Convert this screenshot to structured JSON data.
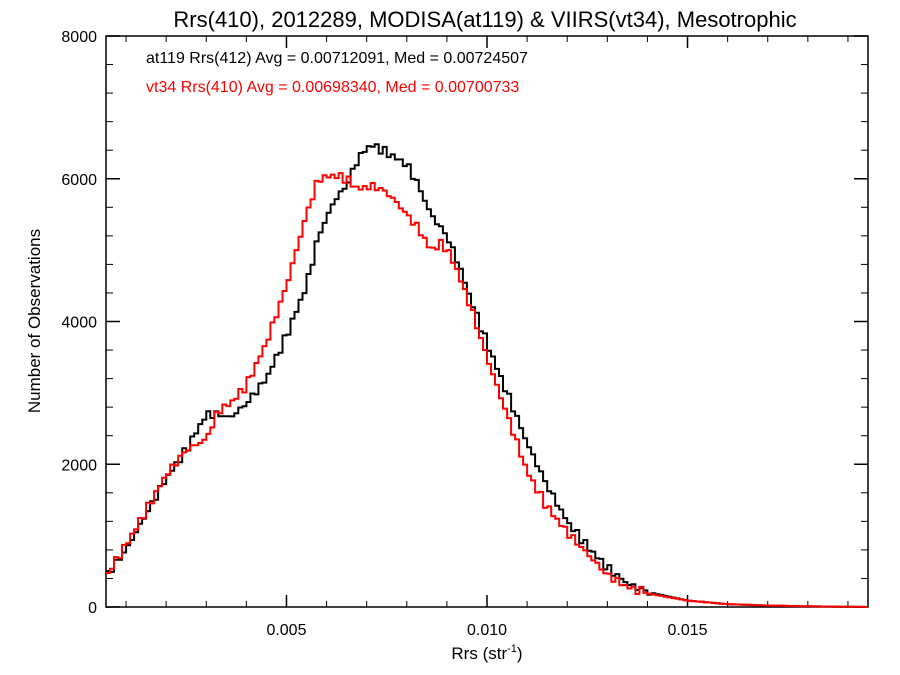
{
  "chart_data": {
    "type": "line",
    "title": "Rrs(410), 2012289, MODISA(at119) & VIIRS(vt34), Mesotrophic",
    "xlabel": "Rrs (str",
    "xlabel_sup": "-1",
    "xlabel_end": ")",
    "ylabel": "Number of Observations",
    "xlim": [
      0.0005,
      0.0195
    ],
    "ylim": [
      0,
      8000
    ],
    "x_ticks": [
      0.005,
      0.01,
      0.015
    ],
    "x_tick_labels": [
      "0.005",
      "0.010",
      "0.015"
    ],
    "y_ticks": [
      0,
      2000,
      4000,
      6000,
      8000
    ],
    "y_tick_labels": [
      "0",
      "2000",
      "4000",
      "6000",
      "8000"
    ],
    "grid": false,
    "legend": "top-left",
    "colors": {
      "black": "#000000",
      "red": "#ff0000"
    },
    "annotations": [
      {
        "text": "at119 Rrs(412) Avg = 0.00712091, Med = 0.00724507",
        "color": "#000000"
      },
      {
        "text": "vt34 Rrs(410) Avg = 0.00698340, Med = 0.00700733",
        "color": "#ff0000"
      }
    ],
    "series": [
      {
        "color": "#000000",
        "x": [
          0.0005,
          0.001,
          0.0015,
          0.002,
          0.0025,
          0.003,
          0.0033,
          0.0036,
          0.004,
          0.0045,
          0.005,
          0.0055,
          0.0058,
          0.0062,
          0.0065,
          0.0068,
          0.0071,
          0.0074,
          0.0077,
          0.008,
          0.0083,
          0.0086,
          0.009,
          0.0093,
          0.0096,
          0.01,
          0.0105,
          0.011,
          0.0115,
          0.012,
          0.0125,
          0.013,
          0.0135,
          0.014,
          0.015,
          0.016,
          0.017,
          0.018,
          0.0195
        ],
        "y": [
          430,
          800,
          1300,
          1800,
          2200,
          2700,
          2700,
          2650,
          2850,
          3200,
          3800,
          4500,
          5200,
          5700,
          5900,
          6300,
          6480,
          6400,
          6300,
          6200,
          5900,
          5500,
          5200,
          4800,
          4300,
          3700,
          3000,
          2300,
          1700,
          1200,
          850,
          550,
          330,
          210,
          90,
          40,
          20,
          10,
          0
        ]
      },
      {
        "color": "#ff0000",
        "x": [
          0.0005,
          0.001,
          0.0015,
          0.002,
          0.0025,
          0.003,
          0.0033,
          0.0036,
          0.004,
          0.0045,
          0.005,
          0.0055,
          0.0058,
          0.0062,
          0.0065,
          0.0068,
          0.0071,
          0.0074,
          0.0077,
          0.008,
          0.0083,
          0.0086,
          0.0089,
          0.0092,
          0.0096,
          0.01,
          0.0105,
          0.011,
          0.0115,
          0.012,
          0.0125,
          0.013,
          0.0135,
          0.014,
          0.015,
          0.016,
          0.017,
          0.018,
          0.0195
        ],
        "y": [
          430,
          870,
          1350,
          1850,
          2200,
          2350,
          2750,
          2850,
          3100,
          3700,
          4500,
          5500,
          6000,
          6050,
          6000,
          5850,
          5900,
          5850,
          5700,
          5500,
          5300,
          5000,
          5100,
          4800,
          4200,
          3500,
          2700,
          1900,
          1400,
          1050,
          750,
          450,
          280,
          190,
          90,
          40,
          20,
          10,
          0
        ]
      }
    ]
  }
}
